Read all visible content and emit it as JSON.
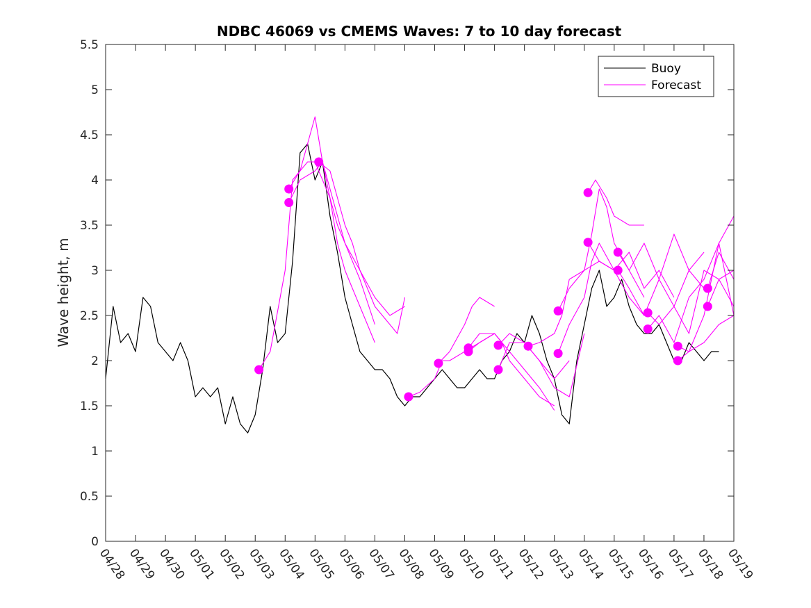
{
  "chart_data": {
    "type": "line",
    "title": "NDBC 46069 vs CMEMS Waves: 7 to 10 day forecast",
    "ylabel": "Wave height, m",
    "xlabel": "",
    "xlim": [
      "2023-04-28",
      "2023-05-19"
    ],
    "ylim": [
      0,
      5.5
    ],
    "x_tick_labels": [
      "04/28",
      "04/29",
      "04/30",
      "05/01",
      "05/02",
      "05/03",
      "05/04",
      "05/05",
      "05/06",
      "05/07",
      "05/08",
      "05/09",
      "05/10",
      "05/11",
      "05/12",
      "05/13",
      "05/14",
      "05/15",
      "05/16",
      "05/17",
      "05/18",
      "05/19"
    ],
    "y_ticks": [
      0,
      0.5,
      1,
      1.5,
      2,
      2.5,
      3,
      3.5,
      4,
      4.5,
      5,
      5.5
    ],
    "y_tick_labels": [
      "0",
      "0.5",
      "1",
      "1.5",
      "2",
      "2.5",
      "3",
      "3.5",
      "4",
      "4.5",
      "5",
      "5.5"
    ],
    "grid": false,
    "legend_position": "top-right",
    "legend": [
      {
        "label": "Buoy",
        "color": "#000000"
      },
      {
        "label": "Forecast",
        "color": "#ff00ff"
      }
    ],
    "colors": {
      "buoy": "#000000",
      "forecast": "#ff00ff"
    },
    "series": [
      {
        "name": "Buoy",
        "x": [
          "04/28 00:00",
          "04/28 06:00",
          "04/28 12:00",
          "04/28 18:00",
          "04/29 00:00",
          "04/29 06:00",
          "04/29 12:00",
          "04/29 18:00",
          "04/30 00:00",
          "04/30 06:00",
          "04/30 12:00",
          "04/30 18:00",
          "05/01 00:00",
          "05/01 06:00",
          "05/01 12:00",
          "05/01 18:00",
          "05/02 00:00",
          "05/02 06:00",
          "05/02 12:00",
          "05/02 18:00",
          "05/03 00:00",
          "05/03 06:00",
          "05/03 12:00",
          "05/03 18:00",
          "05/04 00:00",
          "05/04 06:00",
          "05/04 12:00",
          "05/04 18:00",
          "05/05 00:00",
          "05/05 06:00",
          "05/05 12:00",
          "05/05 18:00",
          "05/06 00:00",
          "05/06 06:00",
          "05/06 12:00",
          "05/06 18:00",
          "05/07 00:00",
          "05/07 06:00",
          "05/07 12:00",
          "05/07 18:00",
          "05/08 00:00",
          "05/08 06:00",
          "05/08 12:00",
          "05/08 18:00",
          "05/09 00:00",
          "05/09 06:00",
          "05/09 12:00",
          "05/09 18:00",
          "05/10 00:00",
          "05/10 06:00",
          "05/10 12:00",
          "05/10 18:00",
          "05/11 00:00",
          "05/11 06:00",
          "05/11 12:00",
          "05/11 18:00",
          "05/12 00:00",
          "05/12 06:00",
          "05/12 12:00",
          "05/12 18:00",
          "05/13 00:00",
          "05/13 06:00",
          "05/13 12:00",
          "05/13 18:00",
          "05/14 00:00",
          "05/14 06:00",
          "05/14 12:00",
          "05/14 18:00",
          "05/15 00:00",
          "05/15 06:00",
          "05/15 12:00",
          "05/15 18:00",
          "05/16 00:00",
          "05/16 06:00",
          "05/16 12:00",
          "05/16 18:00",
          "05/17 00:00",
          "05/17 06:00",
          "05/17 12:00",
          "05/17 18:00",
          "05/18 00:00",
          "05/18 06:00",
          "05/18 12:00"
        ],
        "y": [
          1.8,
          2.6,
          2.2,
          2.3,
          2.1,
          2.7,
          2.6,
          2.2,
          2.1,
          2.0,
          2.2,
          2.0,
          1.6,
          1.7,
          1.6,
          1.7,
          1.3,
          1.6,
          1.3,
          1.2,
          1.4,
          1.9,
          2.6,
          2.2,
          2.3,
          3.1,
          4.3,
          4.4,
          4.0,
          4.2,
          3.6,
          3.2,
          2.7,
          2.4,
          2.1,
          2.0,
          1.9,
          1.9,
          1.8,
          1.6,
          1.5,
          1.6,
          1.6,
          1.7,
          1.8,
          1.9,
          1.8,
          1.7,
          1.7,
          1.8,
          1.9,
          1.8,
          1.8,
          2.0,
          2.1,
          2.3,
          2.2,
          2.5,
          2.3,
          2.0,
          1.8,
          1.4,
          1.3,
          2.0,
          2.4,
          2.8,
          3.0,
          2.6,
          2.7,
          2.9,
          2.6,
          2.4,
          2.3,
          2.3,
          2.4,
          2.2,
          2.0,
          2.0,
          2.2,
          2.1,
          2.0,
          2.1,
          2.1
        ]
      },
      {
        "name": "Forecast",
        "x": [
          "05/03 03:00",
          "05/03 12:00",
          "05/04 00:00",
          "05/04 06:00",
          "05/04 12:00",
          "05/04 18:00",
          "05/05 00:00",
          "05/05 12:00",
          "05/05 18:00",
          "05/06 00:00",
          "05/06 06:00",
          "05/06 12:00",
          "05/06 18:00",
          "05/07 00:00"
        ],
        "y": [
          1.9,
          2.1,
          3.0,
          4.0,
          4.1,
          4.2,
          4.2,
          3.8,
          3.3,
          3.0,
          2.8,
          2.6,
          2.4,
          2.2
        ]
      },
      {
        "name": "Forecast",
        "x": [
          "05/04 03:00",
          "05/04 12:00",
          "05/05 00:00",
          "05/05 06:00",
          "05/05 12:00",
          "05/05 18:00",
          "05/06 00:00",
          "05/06 12:00",
          "05/07 00:00",
          "05/07 12:00",
          "05/08 00:00"
        ],
        "y": [
          3.9,
          4.1,
          4.7,
          4.2,
          3.8,
          3.5,
          3.3,
          3.0,
          2.7,
          2.5,
          2.6
        ]
      },
      {
        "name": "Forecast",
        "x": [
          "05/04 03:00",
          "05/04 12:00",
          "05/05 00:00",
          "05/05 06:00",
          "05/05 12:00",
          "05/06 00:00",
          "05/06 12:00",
          "05/07 00:00"
        ],
        "y": [
          3.75,
          4.0,
          4.1,
          4.2,
          3.9,
          3.3,
          2.9,
          2.4
        ]
      },
      {
        "name": "Forecast",
        "x": [
          "05/05 03:00",
          "05/05 12:00",
          "05/06 00:00",
          "05/06 06:00",
          "05/06 12:00",
          "05/06 18:00",
          "05/07 00:00",
          "05/07 12:00",
          "05/07 18:00",
          "05/08 00:00"
        ],
        "y": [
          4.2,
          4.1,
          3.5,
          3.3,
          3.0,
          2.8,
          2.6,
          2.4,
          2.3,
          2.7
        ]
      },
      {
        "name": "Forecast",
        "x": [
          "05/08 03:00",
          "05/08 12:00",
          "05/09 00:00",
          "05/09 06:00",
          "05/09 12:00",
          "05/10 00:00",
          "05/10 12:00",
          "05/11 00:00"
        ],
        "y": [
          1.6,
          1.65,
          1.8,
          2.0,
          2.0,
          2.1,
          2.2,
          2.3
        ]
      },
      {
        "name": "Forecast",
        "x": [
          "05/09 03:00",
          "05/09 12:00",
          "05/10 00:00",
          "05/10 06:00",
          "05/10 12:00",
          "05/11 00:00"
        ],
        "y": [
          1.97,
          2.1,
          2.4,
          2.6,
          2.7,
          2.6
        ]
      },
      {
        "name": "Forecast",
        "x": [
          "05/10 03:00",
          "05/10 12:00",
          "05/11 00:00",
          "05/11 06:00",
          "05/11 12:00",
          "05/12 00:00",
          "05/12 12:00",
          "05/13 00:00"
        ],
        "y": [
          2.14,
          2.3,
          2.3,
          2.2,
          2.0,
          1.8,
          1.6,
          1.5
        ]
      },
      {
        "name": "Forecast",
        "x": [
          "05/10 03:00",
          "05/10 12:00",
          "05/11 00:00",
          "05/11 12:00",
          "05/12 00:00",
          "05/12 12:00",
          "05/13 00:00"
        ],
        "y": [
          2.1,
          2.2,
          2.3,
          2.1,
          1.9,
          1.7,
          1.45
        ]
      },
      {
        "name": "Forecast",
        "x": [
          "05/11 03:00",
          "05/11 12:00",
          "05/12 00:00",
          "05/12 12:00",
          "05/13 00:00",
          "05/13 06:00",
          "05/13 12:00"
        ],
        "y": [
          2.17,
          2.3,
          2.2,
          2.0,
          1.8,
          1.9,
          2.0
        ]
      },
      {
        "name": "Forecast",
        "x": [
          "05/11 03:00",
          "05/11 12:00",
          "05/12 00:00",
          "05/12 12:00",
          "05/13 00:00",
          "05/13 12:00",
          "05/14 00:00"
        ],
        "y": [
          1.9,
          2.2,
          2.2,
          2.0,
          1.7,
          1.6,
          2.3
        ]
      },
      {
        "name": "Forecast",
        "x": [
          "05/12 03:00",
          "05/12 12:00",
          "05/13 00:00",
          "05/13 06:00",
          "05/13 12:00",
          "05/14 00:00",
          "05/14 12:00",
          "05/15 00:00"
        ],
        "y": [
          2.16,
          2.2,
          2.3,
          2.5,
          2.9,
          3.0,
          3.1,
          3.0
        ]
      },
      {
        "name": "Forecast",
        "x": [
          "05/13 03:00",
          "05/13 12:00",
          "05/14 00:00",
          "05/14 06:00",
          "05/14 12:00",
          "05/14 18:00",
          "05/15 00:00",
          "05/15 12:00",
          "05/16 00:00"
        ],
        "y": [
          2.55,
          2.8,
          3.0,
          3.4,
          3.9,
          3.7,
          3.3,
          3.0,
          2.7
        ]
      },
      {
        "name": "Forecast",
        "x": [
          "05/13 03:00",
          "05/13 12:00",
          "05/14 00:00",
          "05/14 06:00",
          "05/14 12:00",
          "05/15 00:00",
          "05/15 12:00",
          "05/16 00:00"
        ],
        "y": [
          2.08,
          2.4,
          2.7,
          3.1,
          3.3,
          3.0,
          2.7,
          2.5
        ]
      },
      {
        "name": "Forecast",
        "x": [
          "05/14 03:00",
          "05/14 09:00",
          "05/14 18:00",
          "05/15 00:00",
          "05/15 12:00",
          "05/16 00:00"
        ],
        "y": [
          3.86,
          4.0,
          3.8,
          3.6,
          3.5,
          3.5
        ]
      },
      {
        "name": "Forecast",
        "x": [
          "05/14 03:00",
          "05/14 12:00",
          "05/15 00:00",
          "05/15 12:00",
          "05/16 00:00",
          "05/16 12:00",
          "05/17 00:00"
        ],
        "y": [
          3.31,
          3.1,
          3.0,
          3.2,
          2.8,
          3.0,
          2.7
        ]
      },
      {
        "name": "Forecast",
        "x": [
          "05/15 03:00",
          "05/15 12:00",
          "05/16 00:00",
          "05/16 12:00",
          "05/17 00:00",
          "05/17 12:00",
          "05/18 00:00"
        ],
        "y": [
          3.2,
          3.0,
          3.3,
          2.9,
          3.4,
          3.0,
          3.2
        ]
      },
      {
        "name": "Forecast",
        "x": [
          "05/15 03:00",
          "05/15 12:00",
          "05/16 00:00",
          "05/16 12:00",
          "05/17 00:00",
          "05/17 12:00",
          "05/18 00:00"
        ],
        "y": [
          3.0,
          2.8,
          2.5,
          2.9,
          2.6,
          3.0,
          2.8
        ]
      },
      {
        "name": "Forecast",
        "x": [
          "05/16 03:00",
          "05/16 12:00",
          "05/17 00:00",
          "05/17 12:00",
          "05/18 00:00",
          "05/18 12:00",
          "05/19 00:00"
        ],
        "y": [
          2.53,
          2.4,
          2.6,
          2.3,
          3.0,
          2.9,
          3.0
        ]
      },
      {
        "name": "Forecast",
        "x": [
          "05/16 03:00",
          "05/16 12:00",
          "05/17 00:00",
          "05/17 12:00",
          "05/18 00:00",
          "05/18 12:00",
          "05/19 00:00"
        ],
        "y": [
          2.35,
          2.5,
          2.2,
          2.7,
          2.9,
          3.3,
          2.5
        ]
      },
      {
        "name": "Forecast",
        "x": [
          "05/17 03:00",
          "05/17 12:00",
          "05/18 00:00",
          "05/18 12:00",
          "05/19 00:00"
        ],
        "y": [
          2.16,
          2.1,
          2.5,
          3.3,
          3.6
        ]
      },
      {
        "name": "Forecast",
        "x": [
          "05/17 03:00",
          "05/17 12:00",
          "05/18 00:00",
          "05/18 12:00",
          "05/19 00:00"
        ],
        "y": [
          2.0,
          2.1,
          2.2,
          2.4,
          2.5
        ]
      },
      {
        "name": "Forecast",
        "x": [
          "05/18 03:00",
          "05/18 12:00",
          "05/19 00:00"
        ],
        "y": [
          2.8,
          3.2,
          2.9
        ]
      },
      {
        "name": "Forecast",
        "x": [
          "05/18 03:00",
          "05/18 12:00",
          "05/19 00:00"
        ],
        "y": [
          2.6,
          2.9,
          2.6
        ]
      }
    ],
    "forecast_start_markers": {
      "x": [
        "05/03 03:00",
        "05/04 03:00",
        "05/04 03:00",
        "05/05 03:00",
        "05/08 03:00",
        "05/09 03:00",
        "05/10 03:00",
        "05/10 03:00",
        "05/11 03:00",
        "05/11 03:00",
        "05/12 03:00",
        "05/13 03:00",
        "05/13 03:00",
        "05/14 03:00",
        "05/14 03:00",
        "05/15 03:00",
        "05/15 03:00",
        "05/16 03:00",
        "05/16 03:00",
        "05/17 03:00",
        "05/17 03:00",
        "05/18 03:00",
        "05/18 03:00"
      ],
      "y": [
        1.9,
        3.9,
        3.75,
        4.2,
        1.6,
        1.97,
        2.14,
        2.1,
        2.17,
        1.9,
        2.16,
        2.55,
        2.08,
        3.86,
        3.31,
        3.2,
        3.0,
        2.53,
        2.35,
        2.16,
        2.0,
        2.8,
        2.6
      ]
    }
  }
}
